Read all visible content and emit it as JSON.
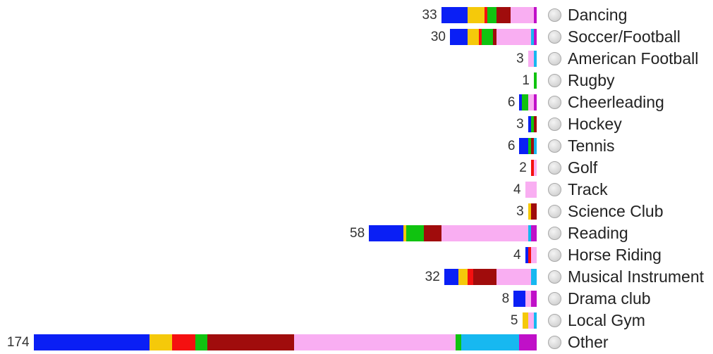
{
  "colors": {
    "blue": "#0a1ff5",
    "yellow": "#f5c90a",
    "red": "#f51010",
    "green": "#10c310",
    "darkred": "#a00c0c",
    "pink": "#f9aef2",
    "cyan": "#17b8f0",
    "magenta": "#c010c8"
  },
  "chart_data": {
    "type": "bar",
    "orientation": "horizontal-stacked",
    "bar_direction": "right-aligned",
    "categories": [
      "Dancing",
      "Soccer/Football",
      "American Football",
      "Rugby",
      "Cheerleading",
      "Hockey",
      "Tennis",
      "Golf",
      "Track",
      "Science Club",
      "Reading",
      "Horse Riding",
      "Musical Instrument",
      "Drama club",
      "Local Gym",
      "Other"
    ],
    "totals": [
      33,
      30,
      3,
      1,
      6,
      3,
      6,
      2,
      4,
      3,
      58,
      4,
      32,
      8,
      5,
      174
    ],
    "series_colors": [
      "blue",
      "yellow",
      "red",
      "green",
      "darkred",
      "pink",
      "cyan",
      "magenta"
    ],
    "segments": [
      [
        9,
        6,
        1,
        3,
        5,
        8,
        0,
        1
      ],
      [
        6,
        4,
        1,
        4,
        1,
        12,
        1,
        1
      ],
      [
        0,
        0,
        0,
        0,
        0,
        2,
        1,
        0
      ],
      [
        0,
        0,
        0,
        1,
        0,
        0,
        0,
        0
      ],
      [
        1,
        0,
        0,
        2,
        0,
        2,
        0,
        1
      ],
      [
        1,
        0,
        0,
        1,
        1,
        0,
        0,
        0
      ],
      [
        3,
        0,
        0,
        1,
        1,
        0,
        1,
        0
      ],
      [
        0,
        0,
        1,
        0,
        0,
        1,
        0,
        0
      ],
      [
        0,
        0,
        0,
        0,
        0,
        4,
        0,
        0
      ],
      [
        0,
        1,
        0,
        0,
        2,
        0,
        0,
        0
      ],
      [
        12,
        1,
        0,
        6,
        6,
        30,
        1,
        2
      ],
      [
        1,
        0,
        1,
        0,
        0,
        2,
        0,
        0
      ],
      [
        5,
        3,
        2,
        0,
        8,
        12,
        2,
        0
      ],
      [
        4,
        0,
        0,
        0,
        0,
        2,
        0,
        2
      ],
      [
        0,
        2,
        0,
        0,
        0,
        2,
        1,
        0
      ],
      [
        40,
        8,
        8,
        4,
        30,
        56,
        2,
        6,
        14,
        6
      ]
    ],
    "other_series_colors": [
      "blue",
      "yellow",
      "red",
      "green",
      "darkred",
      "pink",
      "green",
      "cyan",
      "cyan",
      "magenta"
    ],
    "legend": "none",
    "grid": false
  }
}
